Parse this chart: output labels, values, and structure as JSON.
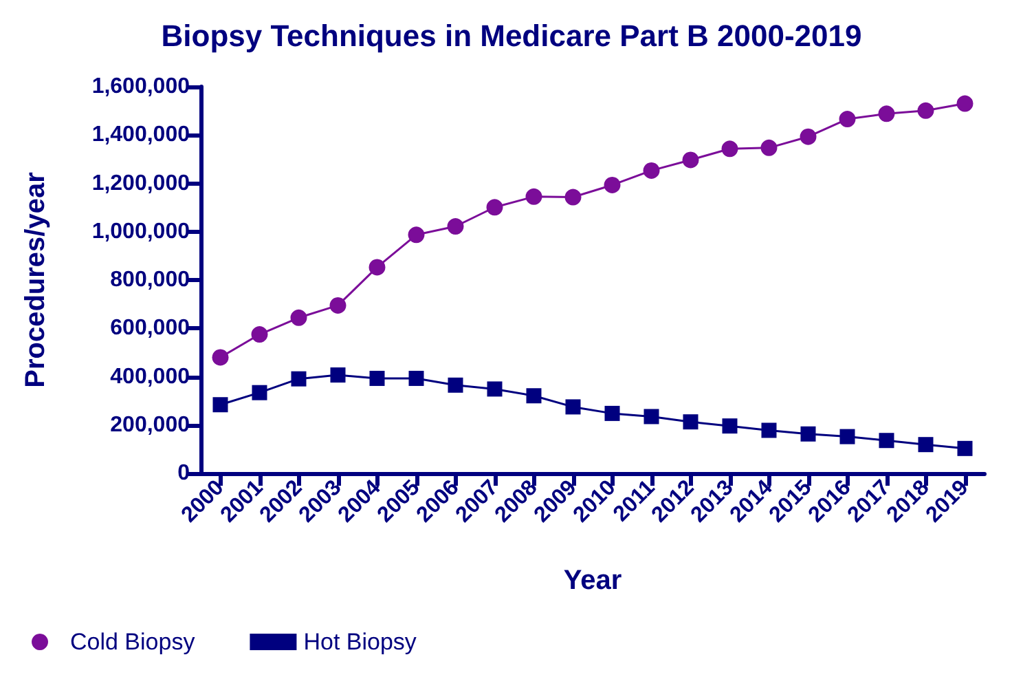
{
  "chart_data": {
    "type": "line",
    "title": "Biopsy Techniques in Medicare Part B 2000-2019",
    "xlabel": "Year",
    "ylabel": "Procedures/year",
    "categories": [
      "2000",
      "2001",
      "2002",
      "2003",
      "2004",
      "2005",
      "2006",
      "2007",
      "2008",
      "2009",
      "2010",
      "2011",
      "2012",
      "2013",
      "2014",
      "2015",
      "2016",
      "2017",
      "2018",
      "2019"
    ],
    "series": [
      {
        "name": "Cold Biopsy",
        "color": "#7b0d99",
        "marker": "circle",
        "values": [
          480000,
          575000,
          644000,
          695000,
          853000,
          987000,
          1022000,
          1101000,
          1145000,
          1143000,
          1193000,
          1253000,
          1297000,
          1343000,
          1347000,
          1393000,
          1466000,
          1488000,
          1501000,
          1530000
        ]
      },
      {
        "name": "Hot Biopsy",
        "color": "#00007f",
        "marker": "square",
        "values": [
          284000,
          334000,
          391000,
          407000,
          393000,
          393000,
          365000,
          349000,
          321000,
          275000,
          248000,
          235000,
          213000,
          196000,
          178000,
          163000,
          152000,
          136000,
          119000,
          103000
        ]
      }
    ],
    "ylim": [
      0,
      1600000
    ],
    "yticks": [
      0,
      {
        "value": 200000,
        "label": "200,000"
      },
      {
        "value": 400000,
        "label": "400,000"
      },
      {
        "value": 600000,
        "label": "600,000"
      },
      {
        "value": 800000,
        "label": "800,000"
      },
      {
        "value": 1000000,
        "label": "1,000,000"
      },
      {
        "value": 1200000,
        "label": "1,200,000"
      },
      {
        "value": 1400000,
        "label": "1,400,000"
      },
      {
        "value": 1600000,
        "label": "1,600,000"
      }
    ],
    "grid": false,
    "legend": "bottom left",
    "line_style": "solid"
  }
}
